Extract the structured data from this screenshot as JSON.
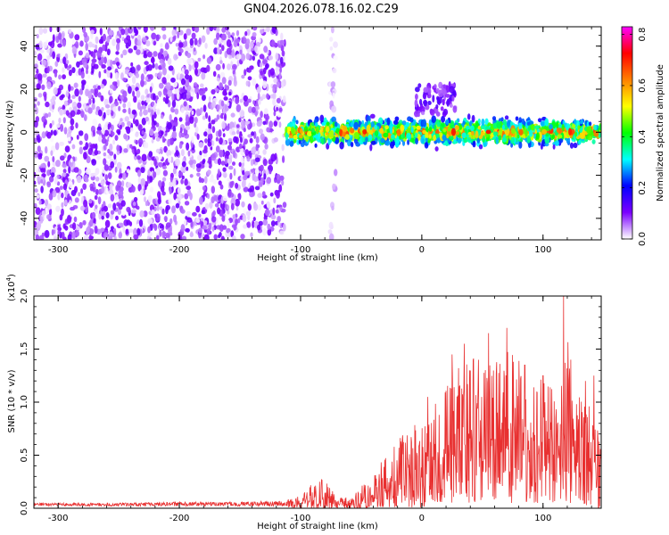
{
  "title": "GN04.2026.078.16.02.C29",
  "chart_data": [
    {
      "type": "heatmap",
      "name": "spectrogram",
      "xlabel": "Height of straight line (km)",
      "ylabel": "Frequency (Hz)",
      "xlim": [
        -320,
        148
      ],
      "ylim": [
        -50,
        49
      ],
      "xticks": [
        -300,
        -200,
        -100,
        0,
        100
      ],
      "yticks": [
        -40,
        -20,
        0,
        20,
        40
      ],
      "colorbar": {
        "label": "Normalized spectral amplitude",
        "range": [
          0.0,
          0.83
        ],
        "ticks": [
          0.0,
          0.2,
          0.4,
          0.6,
          0.8
        ],
        "colormap": [
          "#ffffff",
          "#7b00ff",
          "#0000ff",
          "#00ffff",
          "#00ff00",
          "#ffff00",
          "#ff8000",
          "#ff0000",
          "#ff00ff"
        ]
      },
      "regions": [
        {
          "x": [
            -320,
            -113
          ],
          "freq": [
            -50,
            49
          ],
          "amplitude": [
            0.0,
            0.12
          ],
          "pattern": "uniform broadband noise"
        },
        {
          "x": [
            -76,
            -71
          ],
          "freq": [
            -50,
            49
          ],
          "amplitude": [
            0.0,
            0.05
          ],
          "pattern": "faint vertical streak"
        },
        {
          "x": [
            -113,
            148
          ],
          "freq": [
            -8,
            8
          ],
          "center_freq": 0,
          "amplitude": [
            0.1,
            0.75
          ],
          "pattern": "narrow band near 0 Hz"
        },
        {
          "x": [
            -5,
            28
          ],
          "freq": [
            8,
            22
          ],
          "amplitude": [
            0.05,
            0.15
          ],
          "pattern": "weak upward extension"
        }
      ]
    },
    {
      "type": "line",
      "name": "snr",
      "xlabel": "Height of straight line (km)",
      "ylabel": "SNR (10 * v/v)",
      "yscale_label": "(x10",
      "yscale_exp": "4",
      "y_multiplier": 10000,
      "xlim": [
        -320,
        148
      ],
      "ylim": [
        0.0,
        2.0
      ],
      "xticks": [
        -300,
        -200,
        -100,
        0,
        100
      ],
      "yticks": [
        0.0,
        0.5,
        1.0,
        1.5,
        2.0
      ],
      "ytick_labels": [
        "0.0",
        "0.5",
        "1.0",
        "1.5",
        "2.0"
      ],
      "color": "#e83030",
      "envelope": {
        "x": [
          -320,
          -250,
          -200,
          -150,
          -115,
          -100,
          -90,
          -80,
          -70,
          -60,
          -50,
          -40,
          -30,
          -20,
          -10,
          0,
          10,
          20,
          30,
          40,
          50,
          60,
          70,
          80,
          90,
          100,
          110,
          120,
          130,
          140,
          148
        ],
        "lower": [
          0.0,
          0.0,
          0.0,
          0.0,
          0.0,
          0.0,
          0.0,
          0.0,
          0.0,
          0.0,
          0.0,
          0.0,
          0.0,
          0.0,
          0.0,
          0.0,
          0.05,
          0.05,
          0.05,
          0.05,
          0.05,
          0.05,
          0.05,
          0.05,
          0.05,
          0.05,
          0.05,
          0.05,
          0.05,
          0.0,
          0.0
        ],
        "upper": [
          0.05,
          0.05,
          0.06,
          0.06,
          0.07,
          0.12,
          0.25,
          0.28,
          0.12,
          0.1,
          0.22,
          0.35,
          0.5,
          0.65,
          0.75,
          0.85,
          1.0,
          1.2,
          1.35,
          1.4,
          1.45,
          1.45,
          1.5,
          1.4,
          1.3,
          1.2,
          1.1,
          1.6,
          1.05,
          1.0,
          0.9
        ]
      },
      "peaks": [
        {
          "x": 5,
          "y": 1.05
        },
        {
          "x": 25,
          "y": 1.45
        },
        {
          "x": 35,
          "y": 1.55
        },
        {
          "x": 55,
          "y": 1.65
        },
        {
          "x": 70,
          "y": 1.7
        },
        {
          "x": 85,
          "y": 1.35
        },
        {
          "x": 100,
          "y": 1.25
        },
        {
          "x": 117,
          "y": 2.0
        },
        {
          "x": 123,
          "y": 1.4
        },
        {
          "x": 135,
          "y": 1.2
        },
        {
          "x": 142,
          "y": 1.25
        }
      ]
    }
  ]
}
